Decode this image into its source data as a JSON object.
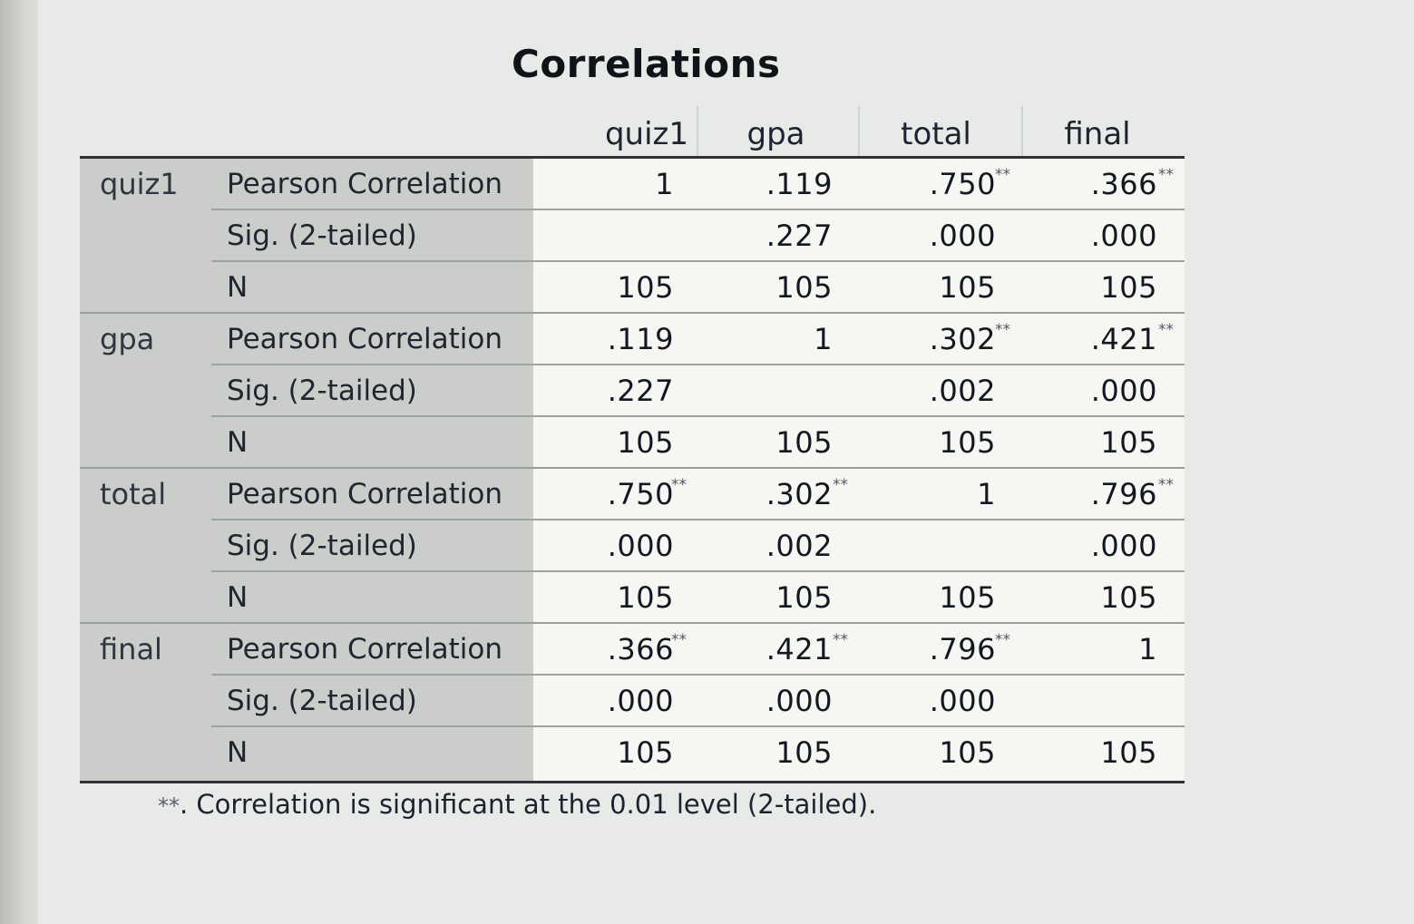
{
  "output": {
    "title": "Correlations",
    "columns": [
      "quiz1",
      "gpa",
      "total",
      "final"
    ],
    "row_groups": [
      {
        "variable": "quiz1",
        "rows": [
          {
            "statistic": "Pearson Correlation",
            "cells": [
              "1",
              ".119",
              ".750",
              ".366"
            ],
            "marks": [
              "",
              "",
              "**",
              "**"
            ]
          },
          {
            "statistic": "Sig. (2-tailed)",
            "cells": [
              "",
              ".227",
              ".000",
              ".000"
            ],
            "marks": [
              "",
              "",
              "",
              ""
            ]
          },
          {
            "statistic": "N",
            "cells": [
              "105",
              "105",
              "105",
              "105"
            ],
            "marks": [
              "",
              "",
              "",
              ""
            ]
          }
        ]
      },
      {
        "variable": "gpa",
        "rows": [
          {
            "statistic": "Pearson Correlation",
            "cells": [
              ".119",
              "1",
              ".302",
              ".421"
            ],
            "marks": [
              "",
              "",
              "**",
              "**"
            ]
          },
          {
            "statistic": "Sig. (2-tailed)",
            "cells": [
              ".227",
              "",
              ".002",
              ".000"
            ],
            "marks": [
              "",
              "",
              "",
              ""
            ]
          },
          {
            "statistic": "N",
            "cells": [
              "105",
              "105",
              "105",
              "105"
            ],
            "marks": [
              "",
              "",
              "",
              ""
            ]
          }
        ]
      },
      {
        "variable": "total",
        "rows": [
          {
            "statistic": "Pearson Correlation",
            "cells": [
              ".750",
              ".302",
              "1",
              ".796"
            ],
            "marks": [
              "**",
              "**",
              "",
              "**"
            ]
          },
          {
            "statistic": "Sig. (2-tailed)",
            "cells": [
              ".000",
              ".002",
              "",
              ".000"
            ],
            "marks": [
              "",
              "",
              "",
              ""
            ]
          },
          {
            "statistic": "N",
            "cells": [
              "105",
              "105",
              "105",
              "105"
            ],
            "marks": [
              "",
              "",
              "",
              ""
            ]
          }
        ]
      },
      {
        "variable": "final",
        "rows": [
          {
            "statistic": "Pearson Correlation",
            "cells": [
              ".366",
              ".421",
              ".796",
              "1"
            ],
            "marks": [
              "**",
              "**",
              "**",
              ""
            ]
          },
          {
            "statistic": "Sig. (2-tailed)",
            "cells": [
              ".000",
              ".000",
              ".000",
              ""
            ],
            "marks": [
              "",
              "",
              "",
              ""
            ]
          },
          {
            "statistic": "N",
            "cells": [
              "105",
              "105",
              "105",
              "105"
            ],
            "marks": [
              "",
              "",
              "",
              ""
            ]
          }
        ]
      }
    ],
    "footnote_mark": "**",
    "footnote_text": ". Correlation is significant at the 0.01 level (2-tailed)."
  }
}
